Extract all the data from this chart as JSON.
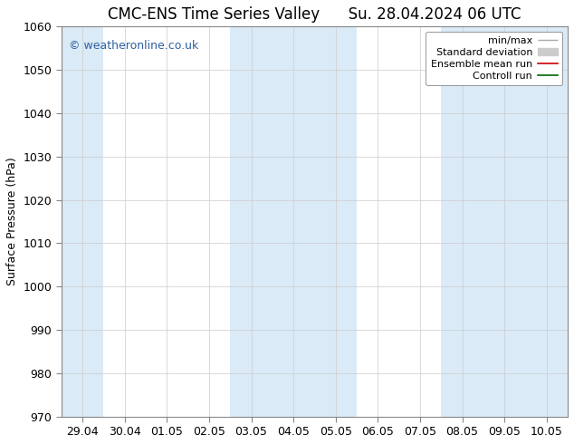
{
  "title_left": "CMC-ENS Time Series Valley",
  "title_right": "Su. 28.04.2024 06 UTC",
  "ylabel": "Surface Pressure (hPa)",
  "ylim": [
    970,
    1060
  ],
  "yticks": [
    970,
    980,
    990,
    1000,
    1010,
    1020,
    1030,
    1040,
    1050,
    1060
  ],
  "x_labels": [
    "29.04",
    "30.04",
    "01.05",
    "02.05",
    "03.05",
    "04.05",
    "05.05",
    "06.05",
    "07.05",
    "08.05",
    "09.05",
    "10.05"
  ],
  "n_cols": 12,
  "shaded_cols": [
    0,
    4,
    5,
    6,
    9,
    10,
    11
  ],
  "band_color": "#daeaf7",
  "watermark": "© weatheronline.co.uk",
  "watermark_color": "#3060a0",
  "legend_items": [
    {
      "label": "min/max",
      "color": "#aaaaaa",
      "lw": 1.0,
      "style": "-",
      "type": "line_with_caps"
    },
    {
      "label": "Standard deviation",
      "color": "#cccccc",
      "lw": 8,
      "style": "-",
      "type": "thick_line"
    },
    {
      "label": "Ensemble mean run",
      "color": "#cc0000",
      "lw": 1.2,
      "style": "-",
      "type": "line"
    },
    {
      "label": "Controll run",
      "color": "#006600",
      "lw": 1.2,
      "style": "-",
      "type": "line"
    }
  ],
  "background_color": "#ffffff",
  "plot_bg_color": "#ffffff",
  "spine_color": "#888888",
  "title_fontsize": 12,
  "axis_fontsize": 9,
  "tick_fontsize": 9,
  "watermark_fontsize": 9
}
